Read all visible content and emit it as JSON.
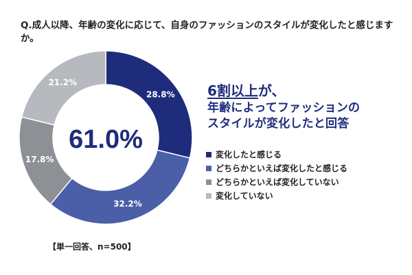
{
  "question": "Q.成人以降、年齢の変化に応じて、自身のファッションのスタイルが変化したと感じますか。",
  "headline": {
    "highlight": "6割以上",
    "suffix": "が、",
    "line2": "年齢によってファッションの",
    "line3": "スタイルが変化したと回答"
  },
  "note": "【単一回答、n=500】",
  "chart_data": {
    "type": "pie",
    "donut": true,
    "center_label": "61.0%",
    "start_angle": "top",
    "direction": "clockwise",
    "slices": [
      {
        "label": "変化したと感じる",
        "value": 28.8,
        "value_label": "28.8%",
        "color": "#1f2c7c",
        "label_color": "#ffffff"
      },
      {
        "label": "どちらかといえば変化したと感じる",
        "value": 32.2,
        "value_label": "32.2%",
        "color": "#4b5ea8",
        "label_color": "#ffffff"
      },
      {
        "label": "どちらかといえば変化していない",
        "value": 17.8,
        "value_label": "17.8%",
        "color": "#8d9196",
        "label_color": "#ffffff"
      },
      {
        "label": "変化していない",
        "value": 21.2,
        "value_label": "21.2%",
        "color": "#b6b9be",
        "label_color": "#ffffff"
      }
    ]
  }
}
